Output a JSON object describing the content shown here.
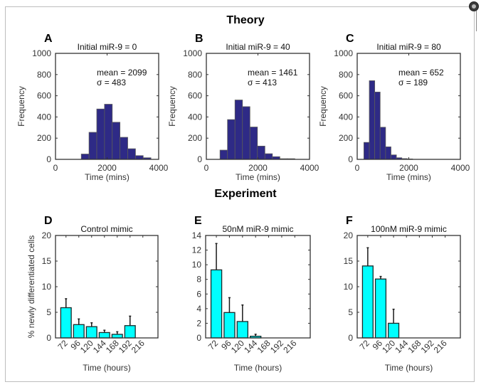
{
  "figure": {
    "section_titles": {
      "theory": "Theory",
      "experiment": "Experiment"
    }
  },
  "colors": {
    "hist_fill": "#2e2a86",
    "hist_edge": "#5a5a5a",
    "bar_fill": "#00ffff",
    "bar_edge": "#1a2a2a",
    "axis": "#333333"
  },
  "chart_data": [
    {
      "panel": "A",
      "type": "bar",
      "subtype": "histogram",
      "title": "Initial miR-9 = 0",
      "xlabel": "Time (mins)",
      "ylabel": "Frequency",
      "xlim": [
        0,
        4000
      ],
      "ylim": [
        0,
        1000
      ],
      "xticks": [
        0,
        2000,
        4000
      ],
      "yticks": [
        0,
        200,
        400,
        600,
        800,
        1000
      ],
      "xtick_labels": [
        "0",
        "2000",
        "4000"
      ],
      "ytick_labels": [
        "0",
        "200",
        "400",
        "600",
        "800",
        "1000"
      ],
      "annotation": [
        "mean = 2099",
        "σ = 483"
      ],
      "bin_edges": [
        1000,
        1300,
        1600,
        1900,
        2200,
        2500,
        2800,
        3100,
        3400,
        3700
      ],
      "values": [
        50,
        255,
        475,
        520,
        350,
        208,
        100,
        35,
        15
      ]
    },
    {
      "panel": "B",
      "type": "bar",
      "subtype": "histogram",
      "title": "Initial miR-9 = 40",
      "xlabel": "Time (mins)",
      "ylabel": "Frequency",
      "xlim": [
        0,
        4000
      ],
      "ylim": [
        0,
        1000
      ],
      "xticks": [
        0,
        2000,
        4000
      ],
      "yticks": [
        0,
        200,
        400,
        600,
        800,
        1000
      ],
      "xtick_labels": [
        "0",
        "2000",
        "4000"
      ],
      "ytick_labels": [
        "0",
        "200",
        "400",
        "600",
        "800",
        "1000"
      ],
      "annotation": [
        "mean = 1461",
        "σ = 413"
      ],
      "bin_edges": [
        530,
        820,
        1110,
        1400,
        1690,
        1980,
        2270,
        2560,
        2850,
        3140,
        3430
      ],
      "values": [
        87,
        375,
        560,
        497,
        305,
        125,
        53,
        25,
        6,
        6
      ]
    },
    {
      "panel": "C",
      "type": "bar",
      "subtype": "histogram",
      "title": "Initial miR-9 = 80",
      "xlabel": "Time (mins)",
      "ylabel": "Frequency",
      "xlim": [
        0,
        4000
      ],
      "ylim": [
        0,
        1000
      ],
      "xticks": [
        0,
        2000,
        4000
      ],
      "yticks": [
        0,
        200,
        400,
        600,
        800,
        1000
      ],
      "xtick_labels": [
        "0",
        "2000",
        "4000"
      ],
      "ytick_labels": [
        "0",
        "200",
        "400",
        "600",
        "800",
        "1000"
      ],
      "annotation": [
        "mean = 652",
        "σ = 189"
      ],
      "bin_edges": [
        260,
        470,
        680,
        890,
        1100,
        1310,
        1520,
        1730,
        1940,
        2150
      ],
      "values": [
        160,
        742,
        635,
        303,
        118,
        42,
        15,
        7,
        4
      ]
    },
    {
      "panel": "D",
      "type": "bar",
      "title": "Control mimic",
      "xlabel": "Time (hours)",
      "ylabel": "% newly differentiated cells",
      "categories": [
        "72",
        "96",
        "120",
        "144",
        "168",
        "192",
        "216"
      ],
      "ylim": [
        0,
        20
      ],
      "yticks": [
        0,
        5,
        10,
        15,
        20
      ],
      "ytick_labels": [
        "0",
        "5",
        "10",
        "15",
        "20"
      ],
      "values": [
        5.9,
        2.6,
        2.2,
        1.05,
        0.7,
        2.4,
        0
      ],
      "error_upper": [
        7.65,
        3.7,
        2.95,
        1.5,
        1.2,
        4.25,
        0
      ]
    },
    {
      "panel": "E",
      "type": "bar",
      "title": "50nM miR-9 mimic",
      "xlabel": "Time (hours)",
      "ylabel": "",
      "categories": [
        "72",
        "96",
        "120",
        "144",
        "168",
        "192",
        "216"
      ],
      "ylim": [
        0,
        14
      ],
      "yticks": [
        0,
        2,
        4,
        6,
        8,
        10,
        12,
        14
      ],
      "ytick_labels": [
        "0",
        "2",
        "4",
        "6",
        "8",
        "10",
        "12",
        "14"
      ],
      "values": [
        9.3,
        3.47,
        2.24,
        0.23,
        0,
        0,
        0
      ],
      "error_upper": [
        12.9,
        5.5,
        4.5,
        0.5,
        0,
        0,
        0
      ]
    },
    {
      "panel": "F",
      "type": "bar",
      "title": "100nM miR-9 mimic",
      "xlabel": "Time (hours)",
      "ylabel": "",
      "categories": [
        "72",
        "96",
        "120",
        "144",
        "168",
        "192",
        "216"
      ],
      "ylim": [
        0,
        20
      ],
      "yticks": [
        0,
        5,
        10,
        15,
        20
      ],
      "ytick_labels": [
        "0",
        "5",
        "10",
        "15",
        "20"
      ],
      "values": [
        14.05,
        11.5,
        2.86,
        0,
        0,
        0,
        0
      ],
      "error_upper": [
        17.6,
        12.0,
        5.6,
        0,
        0,
        0,
        0
      ]
    }
  ]
}
